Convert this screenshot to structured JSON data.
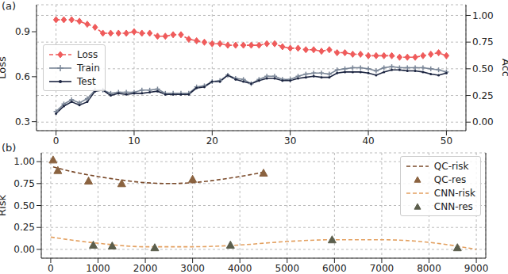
{
  "chart_data": [
    {
      "type": "line",
      "title": "(a)",
      "ylabel": "Loss",
      "y2label": "Acc",
      "x": [
        0,
        1,
        2,
        3,
        4,
        5,
        6,
        7,
        8,
        9,
        10,
        11,
        12,
        13,
        14,
        15,
        16,
        17,
        18,
        19,
        20,
        21,
        22,
        23,
        24,
        25,
        26,
        27,
        28,
        29,
        30,
        31,
        32,
        33,
        34,
        35,
        36,
        37,
        38,
        39,
        40,
        41,
        42,
        43,
        44,
        45,
        46,
        47,
        48,
        49,
        50
      ],
      "xlim": [
        -2.5,
        52.5
      ],
      "xticks": [
        0,
        10,
        20,
        30,
        40,
        50
      ],
      "ylim": [
        0.24,
        1.08
      ],
      "yticks": [
        0.3,
        0.6,
        0.9
      ],
      "y2lim": [
        -0.08,
        1.1
      ],
      "y2ticks": [
        {
          "value": 0,
          "label": "0.00"
        },
        {
          "value": 0.25,
          "label": "0.25"
        },
        {
          "value": 0.5,
          "label": "0.50"
        },
        {
          "value": 0.75,
          "label": "0.75"
        },
        {
          "value": 1,
          "label": "1.00"
        }
      ],
      "grid": true,
      "legend": "center left",
      "series": [
        {
          "name": "Loss",
          "color": "#ef5b5b",
          "marker": "diamond",
          "line_style": "dashed",
          "values": [
            0.98,
            0.98,
            0.98,
            0.97,
            0.95,
            0.93,
            0.89,
            0.89,
            0.89,
            0.89,
            0.9,
            0.89,
            0.89,
            0.87,
            0.87,
            0.88,
            0.88,
            0.85,
            0.84,
            0.83,
            0.82,
            0.82,
            0.81,
            0.81,
            0.81,
            0.81,
            0.81,
            0.82,
            0.82,
            0.8,
            0.79,
            0.79,
            0.78,
            0.78,
            0.77,
            0.78,
            0.76,
            0.76,
            0.75,
            0.75,
            0.74,
            0.74,
            0.74,
            0.74,
            0.73,
            0.73,
            0.73,
            0.74,
            0.75,
            0.76,
            0.74
          ]
        },
        {
          "name": "Train",
          "color": "#7b8798",
          "marker": "plus",
          "line_style": "solid",
          "axis": "y2",
          "values": [
            0.1,
            0.17,
            0.21,
            0.18,
            0.22,
            0.3,
            0.3,
            0.27,
            0.28,
            0.28,
            0.28,
            0.3,
            0.3,
            0.31,
            0.27,
            0.27,
            0.27,
            0.27,
            0.33,
            0.34,
            0.38,
            0.39,
            0.44,
            0.41,
            0.4,
            0.36,
            0.4,
            0.43,
            0.43,
            0.4,
            0.4,
            0.43,
            0.45,
            0.46,
            0.46,
            0.45,
            0.49,
            0.5,
            0.51,
            0.51,
            0.5,
            0.48,
            0.51,
            0.52,
            0.51,
            0.51,
            0.51,
            0.51,
            0.5,
            0.49,
            0.47
          ]
        },
        {
          "name": "Test",
          "color": "#1c2541",
          "marker": "point",
          "line_style": "solid",
          "axis": "y2",
          "values": [
            0.08,
            0.15,
            0.19,
            0.16,
            0.19,
            0.29,
            0.3,
            0.25,
            0.27,
            0.26,
            0.27,
            0.27,
            0.28,
            0.29,
            0.26,
            0.26,
            0.26,
            0.26,
            0.32,
            0.33,
            0.38,
            0.38,
            0.44,
            0.4,
            0.38,
            0.36,
            0.39,
            0.41,
            0.41,
            0.39,
            0.39,
            0.41,
            0.42,
            0.43,
            0.42,
            0.42,
            0.46,
            0.47,
            0.47,
            0.47,
            0.46,
            0.44,
            0.47,
            0.49,
            0.49,
            0.48,
            0.48,
            0.47,
            0.45,
            0.44,
            0.46
          ]
        }
      ]
    },
    {
      "type": "line",
      "title": "(b)",
      "ylabel": "Risk",
      "xlim": [
        -200,
        9200
      ],
      "xticks": [
        0,
        1000,
        2000,
        3000,
        4000,
        5000,
        6000,
        7000,
        8000,
        9000
      ],
      "ylim": [
        -0.1,
        1.1
      ],
      "yticks": [
        {
          "value": 0,
          "label": "0.00"
        },
        {
          "value": 0.25,
          "label": "0.25"
        },
        {
          "value": 0.5,
          "label": "0.50"
        },
        {
          "value": 0.75,
          "label": "0.75"
        },
        {
          "value": 1,
          "label": "1.00"
        }
      ],
      "grid": true,
      "legend": "upper right",
      "series": [
        {
          "name": "QC-risk",
          "type": "line",
          "color": "#7a4a2a",
          "line_style": "dashed",
          "x": [
            50,
            500,
            1000,
            1500,
            2000,
            2500,
            3000,
            3500,
            4000,
            4500
          ],
          "values": [
            0.94,
            0.88,
            0.83,
            0.79,
            0.76,
            0.75,
            0.76,
            0.79,
            0.83,
            0.88
          ]
        },
        {
          "name": "QC-res",
          "type": "scatter",
          "color": "#8b6340",
          "marker": "triangle",
          "x": [
            50,
            150,
            800,
            1500,
            3000,
            4500
          ],
          "values": [
            1.02,
            0.9,
            0.78,
            0.75,
            0.8,
            0.87
          ]
        },
        {
          "name": "CNN-risk",
          "type": "line",
          "color": "#e3a060",
          "line_style": "dashed",
          "x": [
            0,
            1000,
            2000,
            3000,
            4000,
            5000,
            6000,
            7000,
            8000,
            9000
          ],
          "values": [
            0.14,
            0.07,
            0.03,
            0.03,
            0.05,
            0.09,
            0.11,
            0.11,
            0.08,
            0.0
          ]
        },
        {
          "name": "CNN-res",
          "type": "scatter",
          "color": "#5b5e4c",
          "marker": "triangle",
          "x": [
            900,
            1300,
            2200,
            3800,
            5950,
            8600
          ],
          "values": [
            0.05,
            0.04,
            0.02,
            0.05,
            0.11,
            0.02
          ]
        }
      ]
    }
  ]
}
